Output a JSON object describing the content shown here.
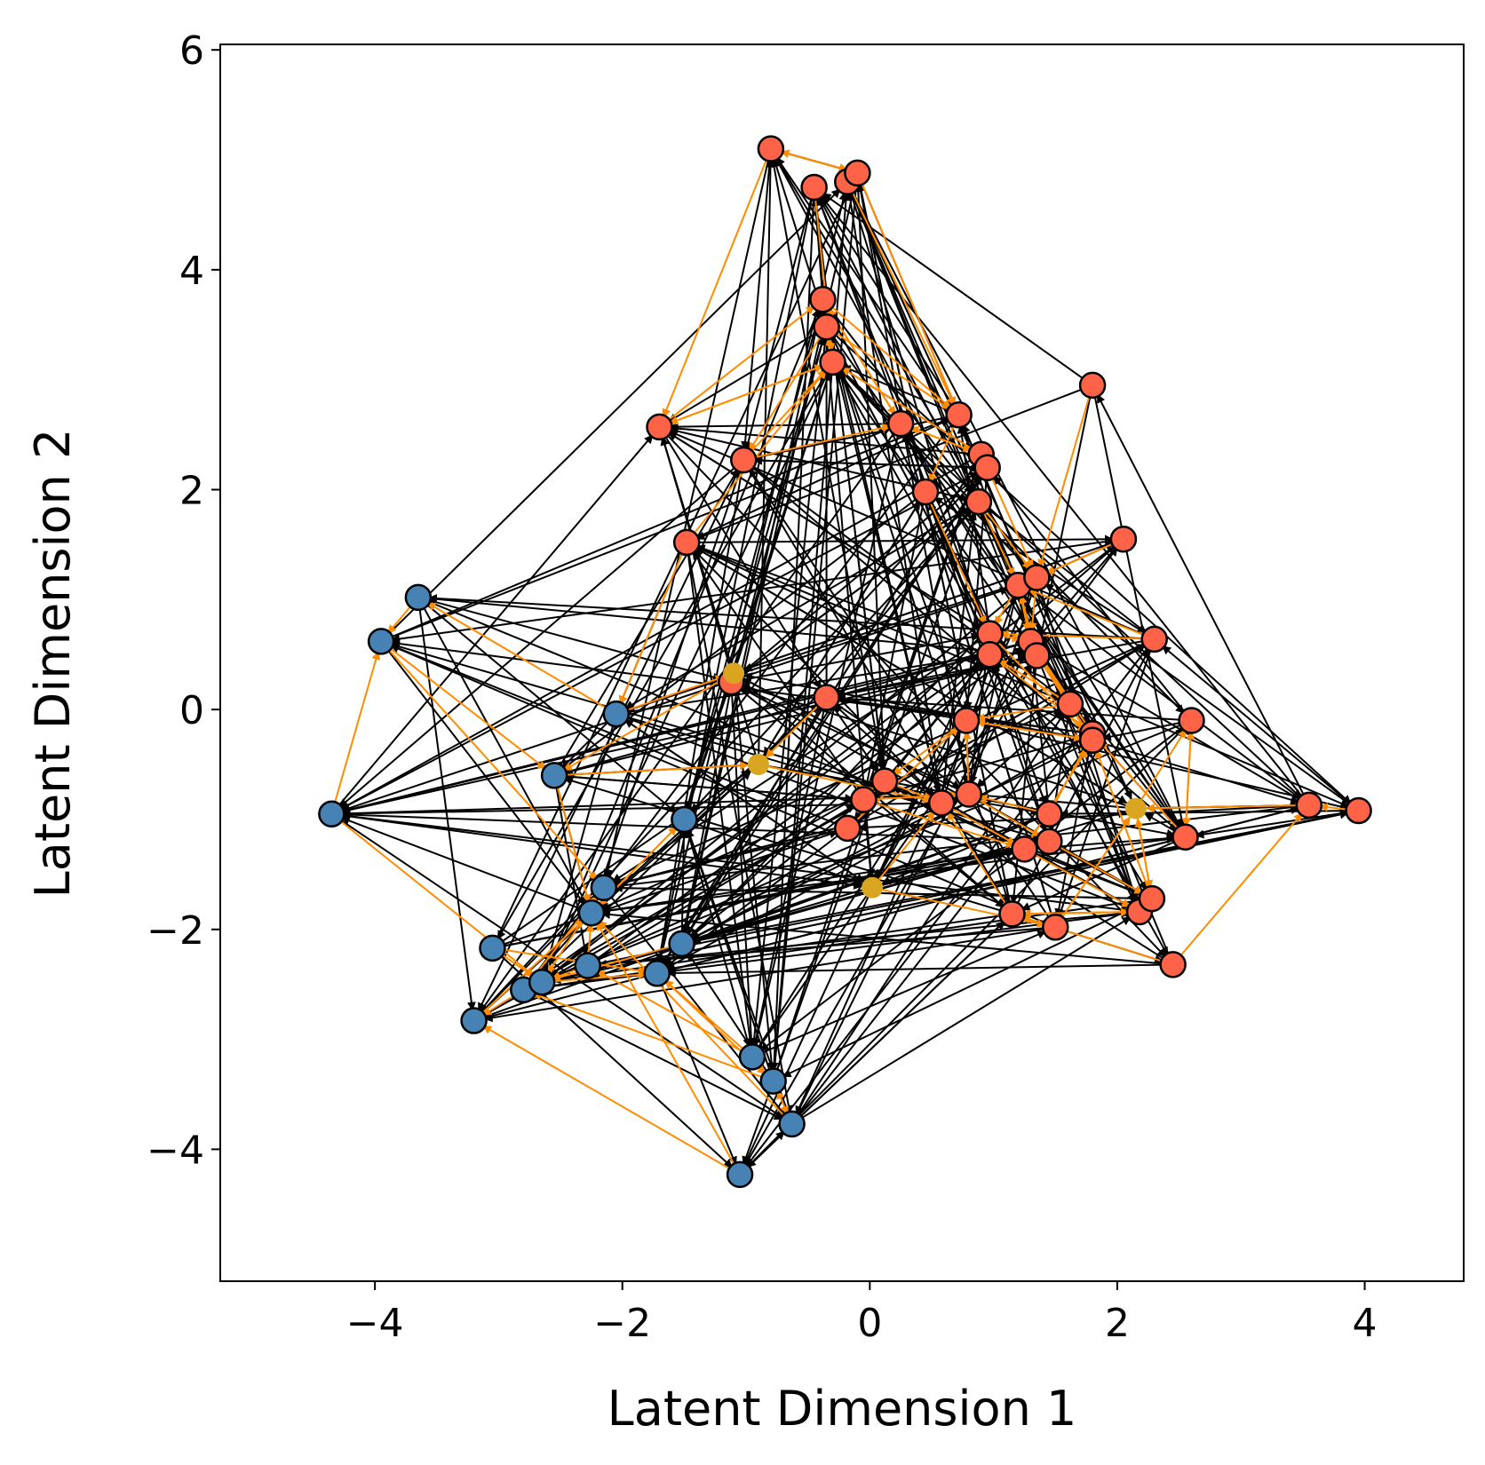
{
  "chart_data": {
    "type": "scatter",
    "title": "",
    "xlabel": "Latent Dimension 1",
    "ylabel": "Latent Dimension 2",
    "xlim": [
      -5.25,
      4.8
    ],
    "ylim": [
      -5.2,
      6.05
    ],
    "xticks": [
      -4,
      -2,
      0,
      2,
      4
    ],
    "yticks": [
      -4,
      -2,
      0,
      2,
      4,
      6
    ],
    "xtick_labels": [
      "−4",
      "−2",
      "0",
      "2",
      "4"
    ],
    "ytick_labels": [
      "−4",
      "−2",
      "0",
      "2",
      "4",
      "6"
    ],
    "grid": false,
    "legend": "none",
    "colors": {
      "cluster_red": "#ff6347",
      "cluster_blue": "#4682b4",
      "cluster_gold": "#daa520",
      "edge_black": "#000000",
      "edge_orange": "#ff8c00"
    },
    "series": [
      {
        "color": "#4682b4",
        "points": [
          [
            -4.35,
            -0.95
          ],
          [
            -3.95,
            0.62
          ],
          [
            -3.65,
            1.02
          ],
          [
            -3.2,
            -2.83
          ],
          [
            -3.05,
            -2.17
          ],
          [
            -2.8,
            -2.55
          ],
          [
            -2.65,
            -2.48
          ],
          [
            -2.55,
            -0.6
          ],
          [
            -2.28,
            -2.33
          ],
          [
            -2.25,
            -1.85
          ],
          [
            -2.15,
            -1.62
          ],
          [
            -2.05,
            -0.04
          ],
          [
            -1.72,
            -2.4
          ],
          [
            -1.52,
            -2.13
          ],
          [
            -1.5,
            -1.0
          ],
          [
            -1.05,
            -4.23
          ],
          [
            -0.95,
            -3.16
          ],
          [
            -0.78,
            -3.38
          ],
          [
            -0.63,
            -3.77
          ]
        ]
      },
      {
        "color": "#ff6347",
        "points": [
          [
            -0.8,
            5.1
          ],
          [
            -0.45,
            4.75
          ],
          [
            -0.18,
            4.8
          ],
          [
            -0.1,
            4.88
          ],
          [
            -0.38,
            3.73
          ],
          [
            -0.35,
            3.48
          ],
          [
            -0.3,
            3.16
          ],
          [
            -1.7,
            2.57
          ],
          [
            -1.02,
            2.27
          ],
          [
            -1.48,
            1.52
          ],
          [
            -1.12,
            0.25
          ],
          [
            -0.35,
            0.11
          ],
          [
            0.25,
            2.6
          ],
          [
            0.45,
            1.98
          ],
          [
            0.72,
            2.68
          ],
          [
            0.9,
            2.32
          ],
          [
            0.95,
            2.2
          ],
          [
            0.88,
            1.89
          ],
          [
            1.8,
            2.95
          ],
          [
            2.05,
            1.55
          ],
          [
            1.2,
            1.13
          ],
          [
            1.35,
            1.2
          ],
          [
            0.97,
            0.69
          ],
          [
            0.97,
            0.5
          ],
          [
            1.3,
            0.62
          ],
          [
            1.35,
            0.49
          ],
          [
            2.3,
            0.64
          ],
          [
            1.62,
            0.05
          ],
          [
            2.6,
            -0.1
          ],
          [
            0.78,
            -0.1
          ],
          [
            1.8,
            -0.22
          ],
          [
            1.8,
            -0.28
          ],
          [
            3.55,
            -0.87
          ],
          [
            3.95,
            -0.92
          ],
          [
            0.12,
            -0.65
          ],
          [
            -0.05,
            -0.82
          ],
          [
            -0.18,
            -1.08
          ],
          [
            0.58,
            -0.85
          ],
          [
            0.8,
            -0.77
          ],
          [
            1.45,
            -0.95
          ],
          [
            1.45,
            -1.2
          ],
          [
            1.25,
            -1.27
          ],
          [
            2.55,
            -1.16
          ],
          [
            1.15,
            -1.86
          ],
          [
            1.5,
            -1.98
          ],
          [
            2.18,
            -1.84
          ],
          [
            2.28,
            -1.72
          ],
          [
            2.45,
            -2.32
          ]
        ]
      },
      {
        "color": "#daa520",
        "points": [
          [
            -1.1,
            0.33
          ],
          [
            -0.9,
            -0.5
          ],
          [
            0.02,
            -1.62
          ],
          [
            2.15,
            -0.9
          ]
        ]
      }
    ],
    "edge_colors": [
      "#000000",
      "#ff8c00"
    ]
  }
}
